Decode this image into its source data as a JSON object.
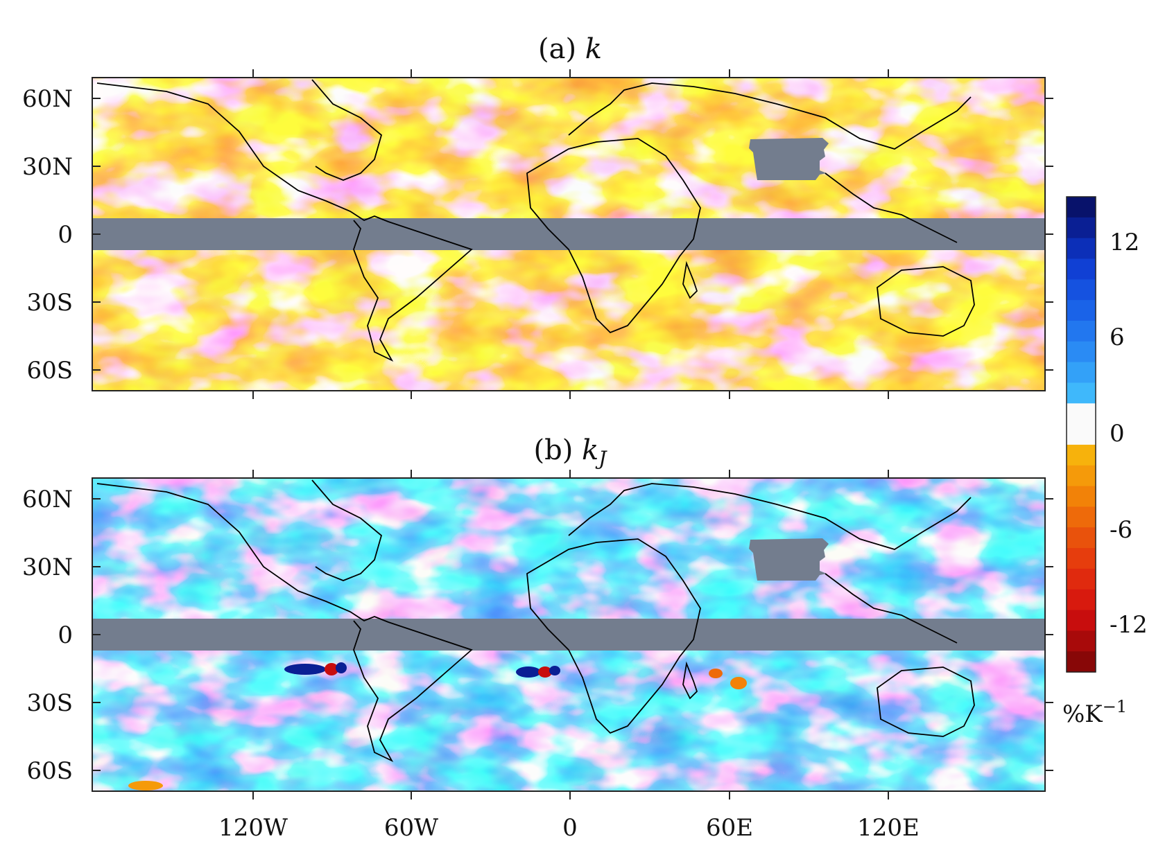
{
  "panels": [
    {
      "title_prefix": "(a) ",
      "title_var": "k",
      "title_sub": "",
      "colour": "warm"
    },
    {
      "title_prefix": "(b) ",
      "title_var": "k",
      "title_sub": "J",
      "colour": "cool"
    }
  ],
  "axes": {
    "lat_ticks": [
      "60N",
      "30N",
      "0",
      "30S",
      "60S"
    ],
    "lon_ticks": [
      "120W",
      "60W",
      "0",
      "60E",
      "120E"
    ]
  },
  "colorbar": {
    "ticks": [
      "12",
      "6",
      "0",
      "-6",
      "-12"
    ],
    "unit_prefix": "%K",
    "unit_exp": "−1",
    "colors": [
      "#08126b",
      "#0a1f94",
      "#0c2fb8",
      "#1040d4",
      "#1552e0",
      "#1a63e8",
      "#2277ef",
      "#2a8bf4",
      "#33a1f8",
      "#3fb8fb",
      "#fafafa",
      "#fafafa",
      "#f7b20c",
      "#f59a0a",
      "#f28208",
      "#ee6a0a",
      "#e9520c",
      "#e63d0d",
      "#e02a0e",
      "#d81a0e",
      "#c80d0d",
      "#a80a0a",
      "#880707"
    ],
    "masked_color": "#737d8e"
  }
}
